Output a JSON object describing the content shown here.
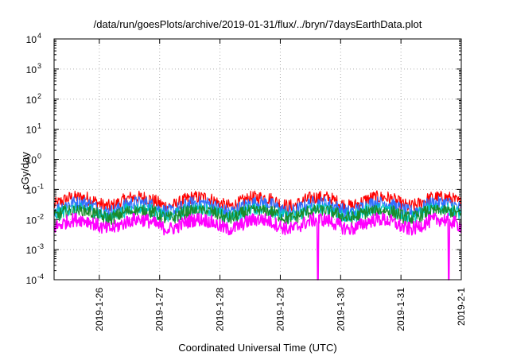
{
  "chart_data": {
    "type": "line",
    "title": "/data/run/goesPlots/archive/2019-01-31/flux/../bryn/7daysEarthData.plot",
    "xlabel": "Coordinated Universal Time (UTC)",
    "ylabel": "cGy/day",
    "yscale": "log",
    "ylim": [
      0.0001,
      10000
    ],
    "xlim": [
      "2019-01-25 06:00",
      "2019-02-01 00:00"
    ],
    "x_ticks": [
      "2019-1-26",
      "2019-1-27",
      "2019-1-28",
      "2019-1-29",
      "2019-1-30",
      "2019-1-31",
      "2019-2-1"
    ],
    "y_ticks": [
      {
        "base": "10",
        "exp": "-4",
        "value": 0.0001
      },
      {
        "base": "10",
        "exp": "-3",
        "value": 0.001
      },
      {
        "base": "10",
        "exp": "-2",
        "value": 0.01
      },
      {
        "base": "10",
        "exp": "-1",
        "value": 0.1
      },
      {
        "base": "10",
        "exp": "0",
        "value": 1
      },
      {
        "base": "10",
        "exp": "1",
        "value": 10
      },
      {
        "base": "10",
        "exp": "2",
        "value": 100
      },
      {
        "base": "10",
        "exp": "3",
        "value": 1000
      },
      {
        "base": "10",
        "exp": "4",
        "value": 10000
      }
    ],
    "grid": true,
    "series": [
      {
        "color": "#ff0000",
        "typical_value": 0.045,
        "peak_value": 0.09
      },
      {
        "color": "#2f6fff",
        "typical_value": 0.03,
        "peak_value": 0.06
      },
      {
        "color": "#00c8c8",
        "typical_value": 0.02,
        "peak_value": 0.035
      },
      {
        "color": "#1a8a2a",
        "typical_value": 0.018,
        "peak_value": 0.03
      },
      {
        "color": "#ff00ff",
        "typical_value": 0.008,
        "peak_value": 0.02,
        "dropouts": [
          "2019-01-29 15:00",
          "2019-01-31 19:00"
        ]
      }
    ]
  }
}
